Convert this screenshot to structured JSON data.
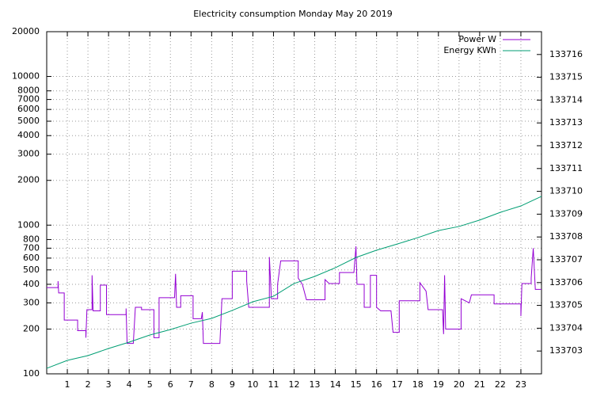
{
  "chart_data": {
    "type": "line",
    "title": "Electricity consumption Monday May 20 2019",
    "xlim": [
      0,
      24
    ],
    "xticks": [
      1,
      2,
      3,
      4,
      5,
      6,
      7,
      8,
      9,
      10,
      11,
      12,
      13,
      14,
      15,
      16,
      17,
      18,
      19,
      20,
      21,
      22,
      23
    ],
    "ylim": [
      100,
      20000
    ],
    "log_y": true,
    "yticks": [
      100,
      200,
      300,
      400,
      500,
      600,
      700,
      800,
      1000,
      2000,
      3000,
      4000,
      5000,
      6000,
      7000,
      8000,
      10000,
      20000
    ],
    "y2lim": [
      133702,
      133717
    ],
    "y2ticks": [
      133703,
      133704,
      133705,
      133706,
      133707,
      133708,
      133709,
      133710,
      133711,
      133712,
      133713,
      133714,
      133715,
      133716
    ],
    "grid": true,
    "legend": "top-right",
    "series": [
      {
        "name": "Power W",
        "color": "#9400d3",
        "x": [
          0,
          0.55,
          0.55,
          0.58,
          0.85,
          0.85,
          1.5,
          1.5,
          1.9,
          1.9,
          1.95,
          2.2,
          2.2,
          2.25,
          2.6,
          2.6,
          2.9,
          2.9,
          3.85,
          3.85,
          3.9,
          4.2,
          4.3,
          4.6,
          4.6,
          5.2,
          5.2,
          5.45,
          5.45,
          6.2,
          6.25,
          6.3,
          6.5,
          6.5,
          7.1,
          7.1,
          7.5,
          7.55,
          7.6,
          8.4,
          8.5,
          9,
          9,
          9.7,
          9.7,
          9.8,
          10.8,
          10.8,
          10.9,
          11.2,
          11.2,
          11.35,
          12.2,
          12.2,
          12.4,
          12.6,
          13.5,
          13.5,
          13.7,
          14.2,
          14.2,
          14.9,
          15,
          15.05,
          15.4,
          15.4,
          15.7,
          15.7,
          16,
          16,
          16.2,
          16.7,
          16.8,
          17.1,
          17.1,
          18.1,
          18.1,
          18.4,
          18.5,
          19.2,
          19.25,
          19.3,
          19.35,
          20.1,
          20.1,
          20.5,
          20.6,
          21.7,
          21.7,
          23,
          23,
          23.05,
          23.5,
          23.5,
          23.6,
          23.7,
          24
        ],
        "values": [
          380,
          380,
          420,
          350,
          350,
          230,
          230,
          195,
          195,
          175,
          270,
          270,
          460,
          265,
          265,
          395,
          395,
          250,
          250,
          275,
          160,
          160,
          280,
          280,
          270,
          270,
          175,
          175,
          325,
          325,
          470,
          280,
          280,
          335,
          335,
          235,
          235,
          260,
          160,
          160,
          320,
          320,
          490,
          490,
          420,
          280,
          280,
          610,
          320,
          320,
          400,
          575,
          575,
          440,
          400,
          315,
          315,
          430,
          405,
          405,
          480,
          480,
          720,
          400,
          400,
          280,
          280,
          460,
          460,
          280,
          265,
          265,
          190,
          190,
          310,
          310,
          410,
          360,
          270,
          270,
          185,
          460,
          200,
          200,
          320,
          300,
          340,
          340,
          295,
          295,
          245,
          405,
          405,
          440,
          700,
          370,
          370
        ]
      },
      {
        "name": "Energy KWh",
        "color": "#009e73",
        "axis": "y2",
        "x": [
          0,
          1,
          2,
          3,
          4,
          5,
          6,
          7,
          8,
          9,
          10,
          11,
          12,
          13,
          14,
          15,
          16,
          17,
          18,
          19,
          20,
          21,
          22,
          23,
          24
        ],
        "values": [
          133702.24,
          133702.59,
          133702.8,
          133703.11,
          133703.39,
          133703.7,
          133703.94,
          133704.22,
          133704.43,
          133704.78,
          133705.16,
          133705.4,
          133705.96,
          133706.27,
          133706.65,
          133707.1,
          133707.42,
          133707.69,
          133707.97,
          133708.28,
          133708.46,
          133708.74,
          133709.08,
          133709.36,
          133709.78
        ]
      }
    ]
  }
}
